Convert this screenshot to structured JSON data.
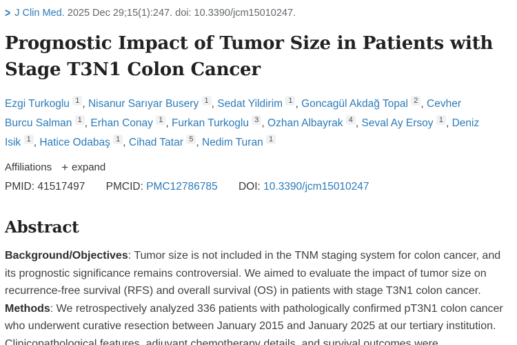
{
  "journal_line": {
    "chevron": ">",
    "journal": "J Clin Med.",
    "citation": "2025 Dec 29;15(1):247. doi: 10.3390/jcm15010247."
  },
  "title": "Prognostic Impact of Tumor Size in Patients with Stage T3N1 Colon Cancer",
  "authors": [
    {
      "name": "Ezgi Turkoglu",
      "sup": "1"
    },
    {
      "name": "Nisanur Sarıyar Busery",
      "sup": "1"
    },
    {
      "name": "Sedat Yildirim",
      "sup": "1"
    },
    {
      "name": "Goncagül Akdağ Topal",
      "sup": "2"
    },
    {
      "name": "Cevher Burcu Salman",
      "sup": "1"
    },
    {
      "name": "Erhan Conay",
      "sup": "1"
    },
    {
      "name": "Furkan Turkoglu",
      "sup": "3"
    },
    {
      "name": "Ozhan Albayrak",
      "sup": "4"
    },
    {
      "name": "Seval Ay Ersoy",
      "sup": "1"
    },
    {
      "name": "Deniz Isik",
      "sup": "1"
    },
    {
      "name": "Hatice Odabaş",
      "sup": "1"
    },
    {
      "name": "Cihad Tatar",
      "sup": "5"
    },
    {
      "name": "Nedim Turan",
      "sup": "1"
    }
  ],
  "affiliations": {
    "label": "Affiliations",
    "expand_icon": "+",
    "expand_label": "expand"
  },
  "ids": {
    "pmid_label": "PMID:",
    "pmid": "41517497",
    "pmcid_label": "PMCID:",
    "pmcid": "PMC12786785",
    "doi_label": "DOI:",
    "doi": "10.3390/jcm15010247"
  },
  "abstract": {
    "heading": "Abstract",
    "sections": [
      {
        "label": "Background/Objectives",
        "text": ": Tumor size is not included in the TNM staging system for colon cancer, and its prognostic significance remains controversial. We aimed to evaluate the impact of tumor size on recurrence-free survival (RFS) and overall survival (OS) in patients with stage T3N1 colon cancer. "
      },
      {
        "label": "Methods",
        "text": ": We retrospectively analyzed 336 patients with pathologically confirmed pT3N1 colon cancer who underwent curative resection between January 2015 and January 2025 at our tertiary institution. Clinicopathological features, adjuvant chemotherapy details, and survival outcomes were"
      }
    ]
  },
  "colors": {
    "link_blue": "#2b7bb9",
    "body_text": "#3d4043",
    "title_text": "#212121",
    "citation_gray": "#63686d",
    "sup_badge_bg": "#eff1f2"
  }
}
